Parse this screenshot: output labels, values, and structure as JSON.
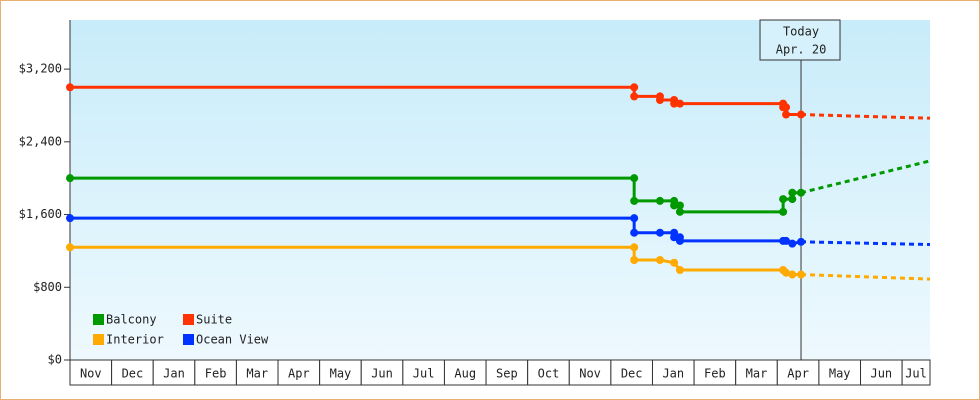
{
  "chart_data": {
    "type": "line",
    "ylim": [
      0,
      3740
    ],
    "yticks": [
      {
        "value": 0,
        "label": "$0"
      },
      {
        "value": 800,
        "label": "$800"
      },
      {
        "value": 1600,
        "label": "$1,600"
      },
      {
        "value": 2400,
        "label": "$2,400"
      },
      {
        "value": 3200,
        "label": "$3,200"
      }
    ],
    "xlim": [
      0,
      20.67
    ],
    "months": [
      "Nov",
      "Dec",
      "Jan",
      "Feb",
      "Mar",
      "Apr",
      "May",
      "Jun",
      "Jul",
      "Aug",
      "Sep",
      "Oct",
      "Nov",
      "Dec",
      "Jan",
      "Feb",
      "Mar",
      "Apr",
      "May",
      "Jun",
      "Jul"
    ],
    "annotation": {
      "lines": [
        "Today",
        "Apr. 20"
      ],
      "x": 17.57
    },
    "series": [
      {
        "name": "Balcony",
        "color": "#009900",
        "x": [
          0,
          13.56,
          13.56,
          14.18,
          14.52,
          14.52,
          14.66,
          14.66,
          17.14,
          17.14,
          17.36,
          17.36,
          17.57
        ],
        "values": [
          2000,
          2000,
          1750,
          1750,
          1750,
          1700,
          1700,
          1630,
          1630,
          1770,
          1770,
          1840,
          1840
        ],
        "forecast_x": [
          17.57,
          20.67
        ],
        "forecast_values": [
          1840,
          2190
        ]
      },
      {
        "name": "Suite",
        "color": "#ff3300",
        "x": [
          0,
          13.56,
          13.56,
          14.18,
          14.18,
          14.52,
          14.52,
          14.66,
          17.14,
          17.14,
          17.21,
          17.21,
          17.57
        ],
        "values": [
          3000,
          3000,
          2900,
          2900,
          2860,
          2860,
          2820,
          2820,
          2820,
          2780,
          2780,
          2700,
          2700
        ],
        "forecast_x": [
          17.57,
          20.67
        ],
        "forecast_values": [
          2700,
          2660
        ]
      },
      {
        "name": "Interior",
        "color": "#ffaa00",
        "x": [
          0,
          13.56,
          13.56,
          14.18,
          14.52,
          14.66,
          17.14,
          17.21,
          17.36,
          17.57
        ],
        "values": [
          1240,
          1240,
          1100,
          1100,
          1070,
          990,
          990,
          960,
          940,
          940
        ],
        "forecast_x": [
          17.57,
          20.67
        ],
        "forecast_values": [
          940,
          890
        ]
      },
      {
        "name": "Ocean View",
        "color": "#0033ff",
        "x": [
          0,
          13.56,
          13.56,
          14.18,
          14.52,
          14.52,
          14.66,
          14.66,
          17.14,
          17.21,
          17.36,
          17.57
        ],
        "values": [
          1560,
          1560,
          1400,
          1400,
          1400,
          1350,
          1350,
          1310,
          1310,
          1310,
          1280,
          1300
        ],
        "forecast_x": [
          17.57,
          20.67
        ],
        "forecast_values": [
          1300,
          1270
        ]
      }
    ]
  }
}
